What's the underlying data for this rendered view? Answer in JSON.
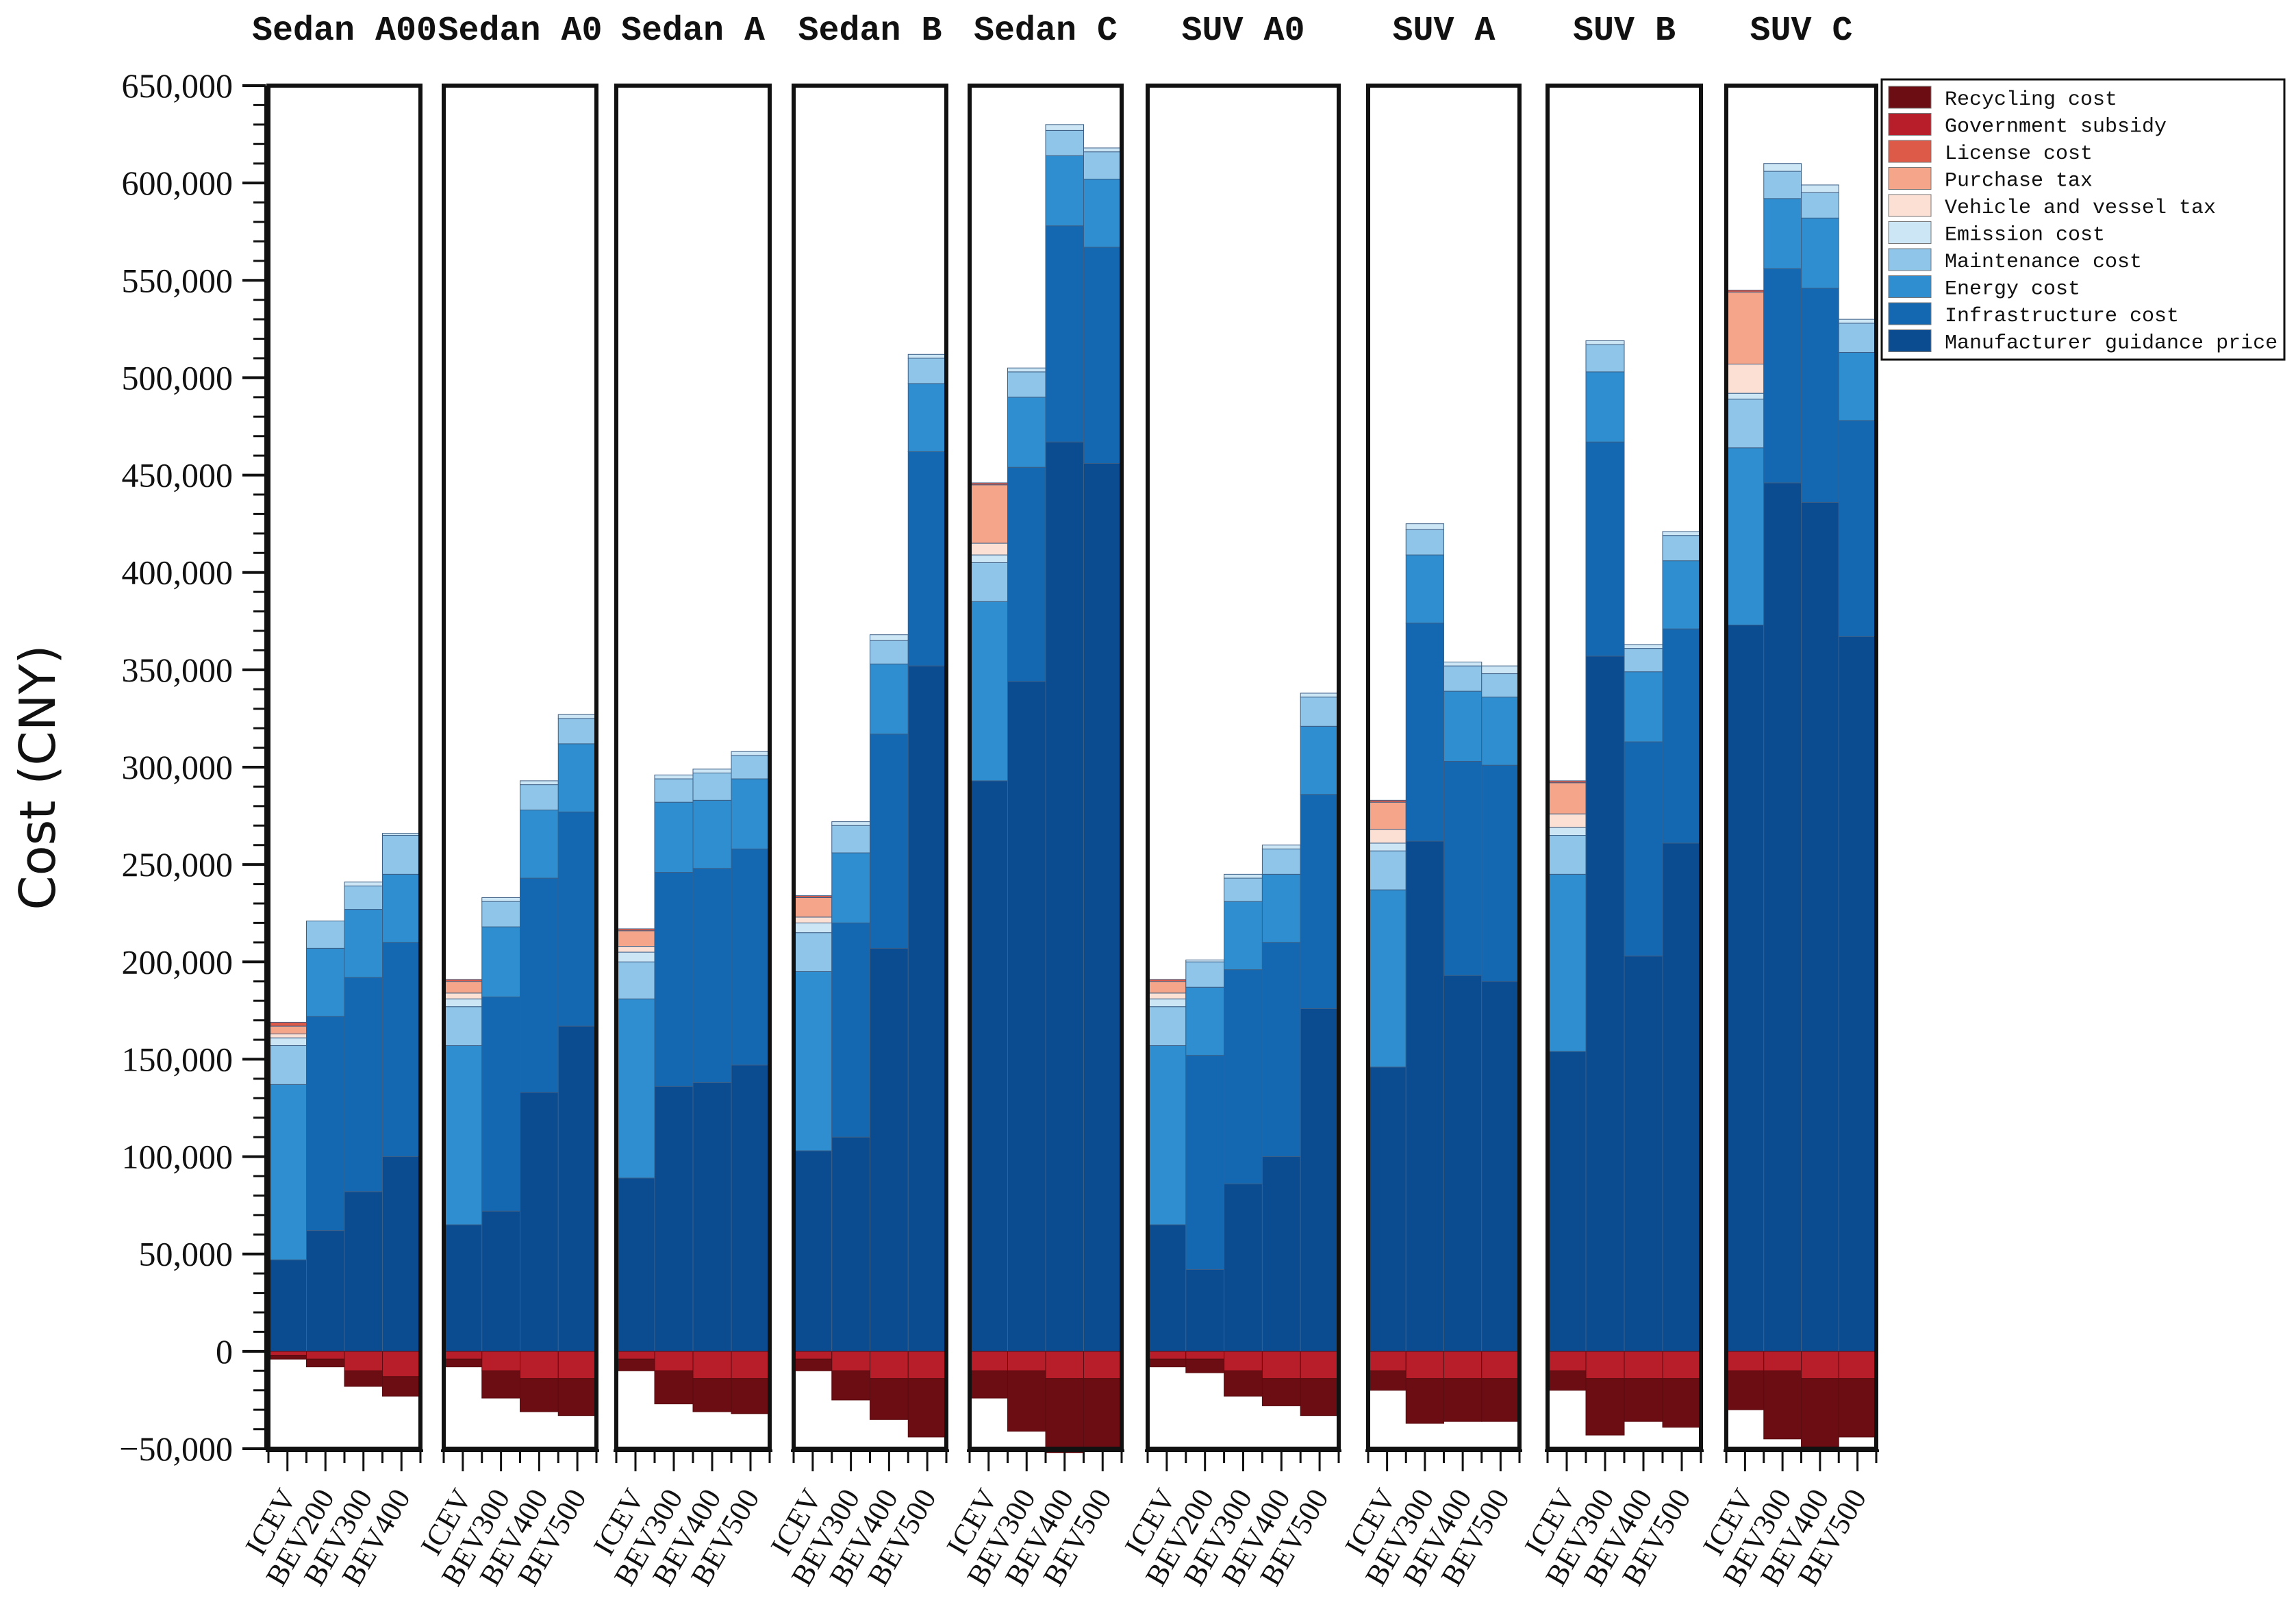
{
  "chart_data": {
    "type": "bar",
    "stacked": true,
    "ylabel": "Cost (CNY)",
    "ylim": [
      -50000,
      650000
    ],
    "yticks": [
      650000,
      600000,
      550000,
      500000,
      450000,
      400000,
      350000,
      300000,
      250000,
      200000,
      150000,
      100000,
      50000,
      0,
      -50000
    ],
    "ytick_labels": [
      "650,000",
      "600,000",
      "550,000",
      "500,000",
      "450,000",
      "400,000",
      "350,000",
      "300,000",
      "250,000",
      "200,000",
      "150,000",
      "100,000",
      "50,000",
      "0",
      "−50,000"
    ],
    "legend": [
      {
        "name": "Recycling cost",
        "color": "#6b0d12"
      },
      {
        "name": "Government subsidy",
        "color": "#b81d2a"
      },
      {
        "name": "License cost",
        "color": "#de5a48"
      },
      {
        "name": "Purchase tax",
        "color": "#f5a58a"
      },
      {
        "name": "Vehicle and vessel tax",
        "color": "#fde0d4"
      },
      {
        "name": "Emission cost",
        "color": "#cde6f6"
      },
      {
        "name": "Maintenance cost",
        "color": "#8ec5e8"
      },
      {
        "name": "Energy cost",
        "color": "#2f8ed0"
      },
      {
        "name": "Infrastructure cost",
        "color": "#1468b2"
      },
      {
        "name": "Manufacturer guidance price",
        "color": "#0b4b90"
      }
    ],
    "panels": [
      {
        "title": "Sedan A00",
        "bars": [
          {
            "label": "ICEV",
            "mgp": 47000,
            "infra": 0,
            "energy": 90000,
            "maint": 20000,
            "emis": 4000,
            "vvt": 2000,
            "ptax": 4000,
            "lic": 2000,
            "subsidy": -2000,
            "recycling": -2000
          },
          {
            "label": "BEV200",
            "mgp": 62000,
            "infra": 110000,
            "energy": 35000,
            "maint": 14000,
            "emis": 0,
            "vvt": 0,
            "ptax": 0,
            "lic": 0,
            "subsidy": -4000,
            "recycling": -4000
          },
          {
            "label": "BEV300",
            "mgp": 82000,
            "infra": 110000,
            "energy": 35000,
            "maint": 12000,
            "emis": 2000,
            "vvt": 0,
            "ptax": 0,
            "lic": 0,
            "subsidy": -10000,
            "recycling": -8000
          },
          {
            "label": "BEV400",
            "mgp": 100000,
            "infra": 110000,
            "energy": 35000,
            "maint": 20000,
            "emis": 1000,
            "vvt": 0,
            "ptax": 0,
            "lic": 0,
            "subsidy": -13000,
            "recycling": -10000
          }
        ]
      },
      {
        "title": "Sedan A0",
        "bars": [
          {
            "label": "ICEV",
            "mgp": 65000,
            "infra": 0,
            "energy": 92000,
            "maint": 20000,
            "emis": 4000,
            "vvt": 3000,
            "ptax": 6000,
            "lic": 1000,
            "subsidy": -4000,
            "recycling": -4000
          },
          {
            "label": "BEV300",
            "mgp": 72000,
            "infra": 110000,
            "energy": 36000,
            "maint": 13000,
            "emis": 2000,
            "vvt": 0,
            "ptax": 0,
            "lic": 0,
            "subsidy": -10000,
            "recycling": -14000
          },
          {
            "label": "BEV400",
            "mgp": 133000,
            "infra": 110000,
            "energy": 35000,
            "maint": 13000,
            "emis": 2000,
            "vvt": 0,
            "ptax": 0,
            "lic": 0,
            "subsidy": -14000,
            "recycling": -17000
          },
          {
            "label": "BEV500",
            "mgp": 167000,
            "infra": 110000,
            "energy": 35000,
            "maint": 13000,
            "emis": 2000,
            "vvt": 0,
            "ptax": 0,
            "lic": 0,
            "subsidy": -14000,
            "recycling": -19000
          }
        ]
      },
      {
        "title": "Sedan A",
        "bars": [
          {
            "label": "ICEV",
            "mgp": 89000,
            "infra": 0,
            "energy": 92000,
            "maint": 19000,
            "emis": 5000,
            "vvt": 3000,
            "ptax": 8000,
            "lic": 1000,
            "subsidy": -4000,
            "recycling": -6000
          },
          {
            "label": "BEV300",
            "mgp": 136000,
            "infra": 110000,
            "energy": 36000,
            "maint": 12000,
            "emis": 2000,
            "vvt": 0,
            "ptax": 0,
            "lic": 0,
            "subsidy": -10000,
            "recycling": -17000
          },
          {
            "label": "BEV400",
            "mgp": 138000,
            "infra": 110000,
            "energy": 35000,
            "maint": 14000,
            "emis": 2000,
            "vvt": 0,
            "ptax": 0,
            "lic": 0,
            "subsidy": -14000,
            "recycling": -17000
          },
          {
            "label": "BEV500",
            "mgp": 147000,
            "infra": 111000,
            "energy": 36000,
            "maint": 12000,
            "emis": 2000,
            "vvt": 0,
            "ptax": 0,
            "lic": 0,
            "subsidy": -14000,
            "recycling": -18000
          }
        ]
      },
      {
        "title": "Sedan B",
        "bars": [
          {
            "label": "ICEV",
            "mgp": 103000,
            "infra": 0,
            "energy": 92000,
            "maint": 20000,
            "emis": 5000,
            "vvt": 3000,
            "ptax": 10000,
            "lic": 1000,
            "subsidy": -4000,
            "recycling": -6000
          },
          {
            "label": "BEV300",
            "mgp": 110000,
            "infra": 110000,
            "energy": 36000,
            "maint": 14000,
            "emis": 2000,
            "vvt": 0,
            "ptax": 0,
            "lic": 0,
            "subsidy": -10000,
            "recycling": -15000
          },
          {
            "label": "BEV400",
            "mgp": 207000,
            "infra": 110000,
            "energy": 36000,
            "maint": 12000,
            "emis": 3000,
            "vvt": 0,
            "ptax": 0,
            "lic": 0,
            "subsidy": -14000,
            "recycling": -21000
          },
          {
            "label": "BEV500",
            "mgp": 352000,
            "infra": 110000,
            "energy": 35000,
            "maint": 13000,
            "emis": 2000,
            "vvt": 0,
            "ptax": 0,
            "lic": 0,
            "subsidy": -14000,
            "recycling": -30000
          }
        ]
      },
      {
        "title": "Sedan C",
        "bars": [
          {
            "label": "ICEV",
            "mgp": 293000,
            "infra": 0,
            "energy": 92000,
            "maint": 20000,
            "emis": 4000,
            "vvt": 6000,
            "ptax": 30000,
            "lic": 1000,
            "subsidy": -10000,
            "recycling": -14000
          },
          {
            "label": "BEV300",
            "mgp": 344000,
            "infra": 110000,
            "energy": 36000,
            "maint": 13000,
            "emis": 2000,
            "vvt": 0,
            "ptax": 0,
            "lic": 0,
            "subsidy": -10000,
            "recycling": -31000
          },
          {
            "label": "BEV400",
            "mgp": 467000,
            "infra": 111000,
            "energy": 36000,
            "maint": 13000,
            "emis": 3000,
            "vvt": 0,
            "ptax": 0,
            "lic": 0,
            "subsidy": -14000,
            "recycling": -38000
          },
          {
            "label": "BEV500",
            "mgp": 456000,
            "infra": 111000,
            "energy": 35000,
            "maint": 14000,
            "emis": 2000,
            "vvt": 0,
            "ptax": 0,
            "lic": 0,
            "subsidy": -14000,
            "recycling": -37000
          }
        ]
      },
      {
        "title": "SUV A0",
        "bars": [
          {
            "label": "ICEV",
            "mgp": 65000,
            "infra": 0,
            "energy": 92000,
            "maint": 20000,
            "emis": 4000,
            "vvt": 3000,
            "ptax": 6000,
            "lic": 1000,
            "subsidy": -4000,
            "recycling": -4000
          },
          {
            "label": "BEV200",
            "mgp": 42000,
            "infra": 110000,
            "energy": 35000,
            "maint": 13000,
            "emis": 1000,
            "vvt": 0,
            "ptax": 0,
            "lic": 0,
            "subsidy": -4000,
            "recycling": -7000
          },
          {
            "label": "BEV300",
            "mgp": 86000,
            "infra": 110000,
            "energy": 35000,
            "maint": 12000,
            "emis": 2000,
            "vvt": 0,
            "ptax": 0,
            "lic": 0,
            "subsidy": -10000,
            "recycling": -13000
          },
          {
            "label": "BEV400",
            "mgp": 100000,
            "infra": 110000,
            "energy": 35000,
            "maint": 13000,
            "emis": 2000,
            "vvt": 0,
            "ptax": 0,
            "lic": 0,
            "subsidy": -14000,
            "recycling": -14000
          },
          {
            "label": "BEV500",
            "mgp": 176000,
            "infra": 110000,
            "energy": 35000,
            "maint": 15000,
            "emis": 2000,
            "vvt": 0,
            "ptax": 0,
            "lic": 0,
            "subsidy": -14000,
            "recycling": -19000
          }
        ]
      },
      {
        "title": "SUV A",
        "bars": [
          {
            "label": "ICEV",
            "mgp": 146000,
            "infra": 0,
            "energy": 91000,
            "maint": 20000,
            "emis": 4000,
            "vvt": 7000,
            "ptax": 14000,
            "lic": 1000,
            "subsidy": -10000,
            "recycling": -10000
          },
          {
            "label": "BEV300",
            "mgp": 262000,
            "infra": 112000,
            "energy": 35000,
            "maint": 13000,
            "emis": 3000,
            "vvt": 0,
            "ptax": 0,
            "lic": 0,
            "subsidy": -14000,
            "recycling": -23000
          },
          {
            "label": "BEV400",
            "mgp": 193000,
            "infra": 110000,
            "energy": 36000,
            "maint": 13000,
            "emis": 2000,
            "vvt": 0,
            "ptax": 0,
            "lic": 0,
            "subsidy": -14000,
            "recycling": -22000
          },
          {
            "label": "BEV500",
            "mgp": 190000,
            "infra": 111000,
            "energy": 35000,
            "maint": 12000,
            "emis": 4000,
            "vvt": 0,
            "ptax": 0,
            "lic": 0,
            "subsidy": -14000,
            "recycling": -22000
          }
        ]
      },
      {
        "title": "SUV B",
        "bars": [
          {
            "label": "ICEV",
            "mgp": 154000,
            "infra": 0,
            "energy": 91000,
            "maint": 20000,
            "emis": 4000,
            "vvt": 7000,
            "ptax": 16000,
            "lic": 1000,
            "subsidy": -10000,
            "recycling": -10000
          },
          {
            "label": "BEV300",
            "mgp": 357000,
            "infra": 110000,
            "energy": 36000,
            "maint": 14000,
            "emis": 2000,
            "vvt": 0,
            "ptax": 0,
            "lic": 0,
            "subsidy": -14000,
            "recycling": -29000
          },
          {
            "label": "BEV400",
            "mgp": 203000,
            "infra": 110000,
            "energy": 36000,
            "maint": 12000,
            "emis": 2000,
            "vvt": 0,
            "ptax": 0,
            "lic": 0,
            "subsidy": -14000,
            "recycling": -22000
          },
          {
            "label": "BEV500",
            "mgp": 261000,
            "infra": 110000,
            "energy": 35000,
            "maint": 13000,
            "emis": 2000,
            "vvt": 0,
            "ptax": 0,
            "lic": 0,
            "subsidy": -14000,
            "recycling": -25000
          }
        ]
      },
      {
        "title": "SUV C",
        "bars": [
          {
            "label": "ICEV",
            "mgp": 373000,
            "infra": 0,
            "energy": 91000,
            "maint": 25000,
            "emis": 3000,
            "vvt": 15000,
            "ptax": 37000,
            "lic": 1000,
            "subsidy": -10000,
            "recycling": -20000
          },
          {
            "label": "BEV300",
            "mgp": 446000,
            "infra": 110000,
            "energy": 36000,
            "maint": 14000,
            "emis": 4000,
            "vvt": 0,
            "ptax": 0,
            "lic": 0,
            "subsidy": -10000,
            "recycling": -35000
          },
          {
            "label": "BEV400",
            "mgp": 436000,
            "infra": 110000,
            "energy": 36000,
            "maint": 13000,
            "emis": 4000,
            "vvt": 0,
            "ptax": 0,
            "lic": 0,
            "subsidy": -14000,
            "recycling": -35000
          },
          {
            "label": "BEV500",
            "mgp": 367000,
            "infra": 111000,
            "energy": 35000,
            "maint": 15000,
            "emis": 2000,
            "vvt": 0,
            "ptax": 0,
            "lic": 0,
            "subsidy": -14000,
            "recycling": -30000
          }
        ]
      }
    ]
  }
}
